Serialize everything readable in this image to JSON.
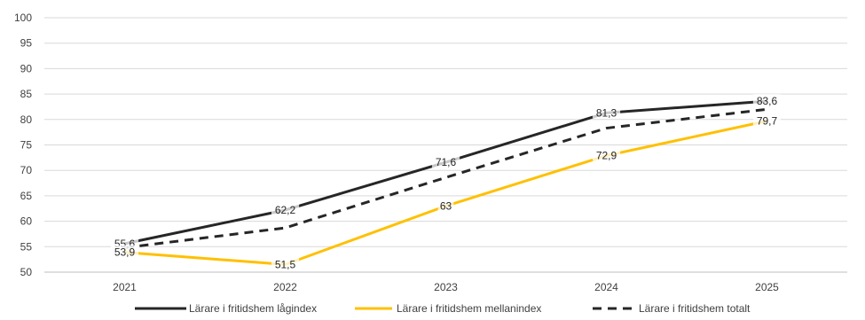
{
  "chart_data": {
    "type": "line",
    "categories": [
      "2021",
      "2022",
      "2023",
      "2024",
      "2025"
    ],
    "ylim": [
      50,
      100
    ],
    "y_ticks": [
      50,
      55,
      60,
      65,
      70,
      75,
      80,
      85,
      90,
      95,
      100
    ],
    "grid": "horizontal",
    "legend_position": "bottom",
    "series": [
      {
        "name": "Lärare i fritidshem lågindex",
        "values": [
          55.6,
          62.2,
          71.6,
          81.3,
          83.6
        ],
        "color": "#262626",
        "style": "solid",
        "labels": [
          "55,6",
          "62,2",
          "71,6",
          "81,3",
          "83,6"
        ]
      },
      {
        "name": "Lärare i fritidshem mellanindex",
        "values": [
          53.9,
          51.5,
          63.0,
          72.9,
          79.7
        ],
        "color": "#FFC000",
        "style": "solid",
        "labels": [
          "53,9",
          "51,5",
          "63",
          "72,9",
          "79,7"
        ]
      },
      {
        "name": "Lärare i fritidshem totalt",
        "values": [
          54.8,
          58.7,
          68.6,
          78.3,
          82.0
        ],
        "color": "#262626",
        "style": "dashed"
      }
    ]
  }
}
